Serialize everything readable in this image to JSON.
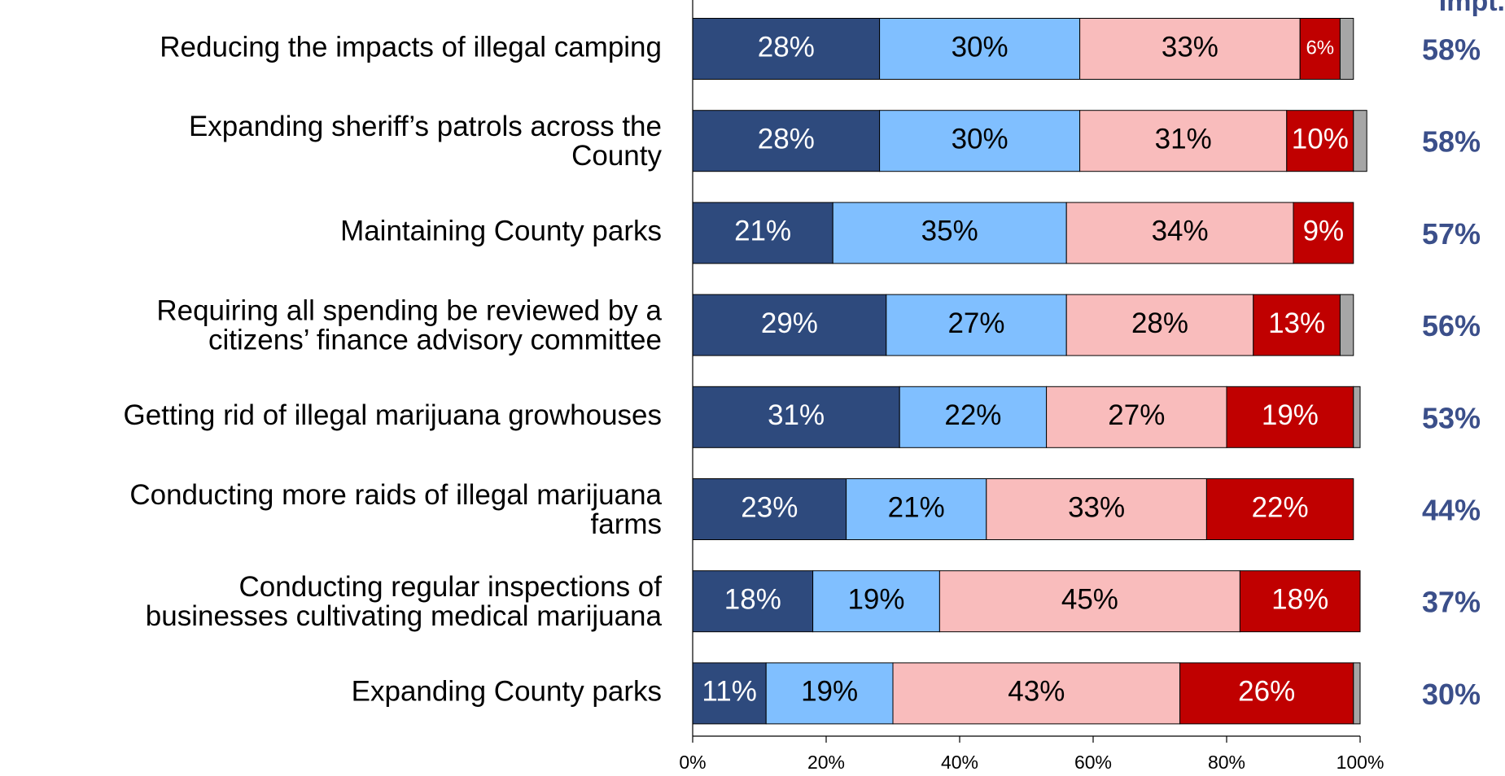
{
  "chart_data": {
    "type": "stacked_bar_horizontal",
    "categories": [
      "Reducing the impacts of illegal camping",
      "Expanding sheriff’s patrols across the\nCounty",
      "Maintaining County parks",
      "Requiring all spending be reviewed by a\ncitizens’ finance advisory committee",
      "Getting rid of illegal marijuana growhouses",
      "Conducting more raids of illegal marijuana\nfarms",
      "Conducting regular inspections of\nbusinesses cultivating medical marijuana",
      "Expanding County parks"
    ],
    "series": [
      {
        "color": "#2e4a7d",
        "label_color": "#ffffff",
        "values": [
          28,
          28,
          21,
          29,
          31,
          23,
          18,
          11
        ],
        "value_labels": [
          "28%",
          "28%",
          "21%",
          "29%",
          "31%",
          "23%",
          "18%",
          "11%"
        ]
      },
      {
        "color": "#80bfff",
        "label_color": "#000000",
        "values": [
          30,
          30,
          35,
          27,
          22,
          21,
          19,
          19
        ],
        "value_labels": [
          "30%",
          "30%",
          "35%",
          "27%",
          "22%",
          "21%",
          "19%",
          "19%"
        ]
      },
      {
        "color": "#f9bcbc",
        "label_color": "#000000",
        "values": [
          33,
          31,
          34,
          28,
          27,
          33,
          45,
          43
        ],
        "value_labels": [
          "33%",
          "31%",
          "34%",
          "28%",
          "27%",
          "33%",
          "45%",
          "43%"
        ]
      },
      {
        "color": "#c00000",
        "label_color": "#ffffff",
        "values": [
          6,
          10,
          9,
          13,
          19,
          22,
          18,
          26
        ],
        "value_labels": [
          "6%",
          "10%",
          "9%",
          "13%",
          "19%",
          "22%",
          "18%",
          "26%"
        ]
      },
      {
        "color": "#a6a6a6",
        "values": [
          2,
          2,
          0,
          2,
          1,
          0,
          0,
          1
        ]
      }
    ],
    "xlim": [
      0,
      100
    ],
    "xticks": [
      {
        "value": 0,
        "label": "0%"
      },
      {
        "value": 20,
        "label": "20%"
      },
      {
        "value": 40,
        "label": "40%"
      },
      {
        "value": 60,
        "label": "60%"
      },
      {
        "value": 80,
        "label": "80%"
      },
      {
        "value": 100,
        "label": "100%"
      }
    ],
    "totals": {
      "title": "Impt.",
      "color": "#3b4f8a",
      "values": [
        58,
        58,
        57,
        56,
        53,
        44,
        37,
        30
      ],
      "value_labels": [
        "58%",
        "58%",
        "57%",
        "56%",
        "53%",
        "44%",
        "37%",
        "30%"
      ]
    }
  }
}
